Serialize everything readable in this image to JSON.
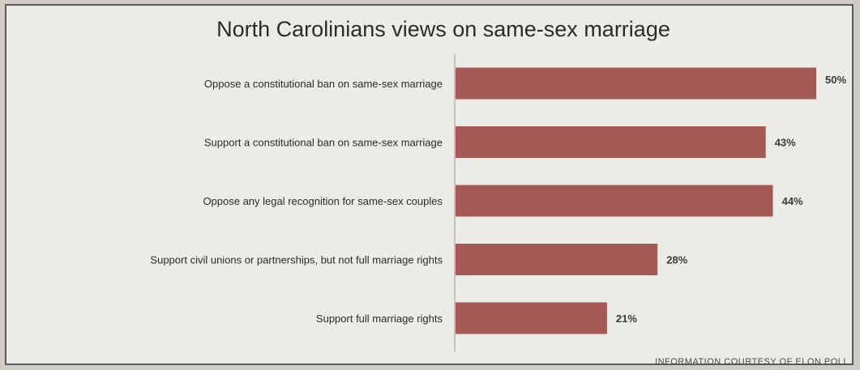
{
  "chart_data": {
    "type": "bar",
    "orientation": "horizontal",
    "title": "North Carolinians views on same-sex marriage",
    "categories": [
      "Oppose a constitutional ban on same-sex marriage",
      "Support a constitutional ban on same-sex marriage",
      "Oppose any legal recognition for same-sex couples",
      "Support civil unions or partnerships, but not full marriage rights",
      "Support full marriage rights"
    ],
    "values": [
      50,
      43,
      44,
      28,
      21
    ],
    "value_labels": [
      "50%",
      "43%",
      "44%",
      "28%",
      "21%"
    ],
    "bar_color": "#a55a55",
    "grid": false,
    "legend": "none"
  },
  "source": "INFORMATION COURTESY OF ELON POLL"
}
